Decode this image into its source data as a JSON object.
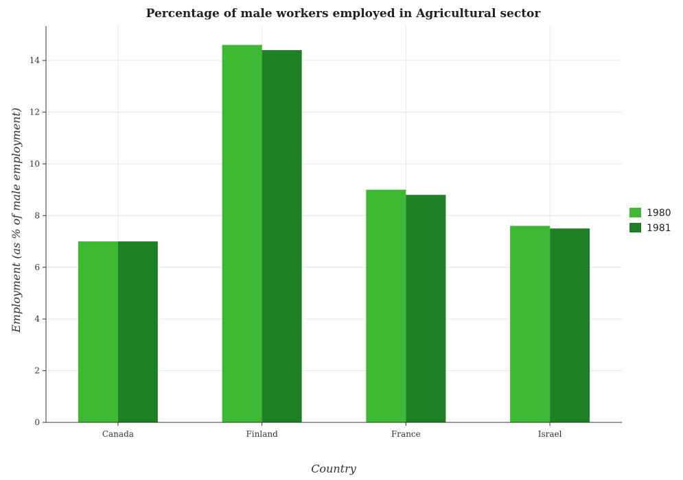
{
  "chart_data": {
    "type": "bar",
    "title": "Percentage of male workers employed in Agricultural sector",
    "xlabel": "Country",
    "ylabel": "Employment (as % of male employment)",
    "categories": [
      "Canada",
      "Finland",
      "France",
      "Israel"
    ],
    "series": [
      {
        "name": "1980",
        "color": "#3cb832",
        "values": [
          7.0,
          14.6,
          9.0,
          7.6
        ]
      },
      {
        "name": "1981",
        "color": "#1f7f24",
        "values": [
          7.0,
          14.4,
          8.8,
          7.5
        ]
      }
    ],
    "ylim": [
      0,
      15.33
    ],
    "yticks": [
      0,
      2,
      4,
      6,
      8,
      10,
      12,
      14
    ],
    "ytick_labels": [
      "0",
      "2",
      "4",
      "6",
      "8",
      "10",
      "12",
      "14"
    ],
    "grid": true,
    "legend_position": "right"
  }
}
